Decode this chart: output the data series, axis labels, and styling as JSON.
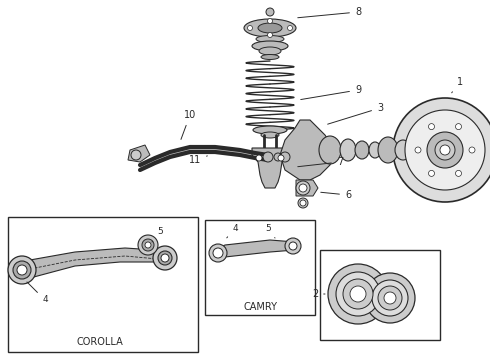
{
  "background_color": "#ffffff",
  "line_color": "#2a2a2a",
  "gray_fill": "#888888",
  "light_gray": "#bbbbbb",
  "fig_width": 4.9,
  "fig_height": 3.6,
  "dpi": 100,
  "layout": {
    "xlim": [
      0,
      490
    ],
    "ylim": [
      0,
      360
    ]
  }
}
